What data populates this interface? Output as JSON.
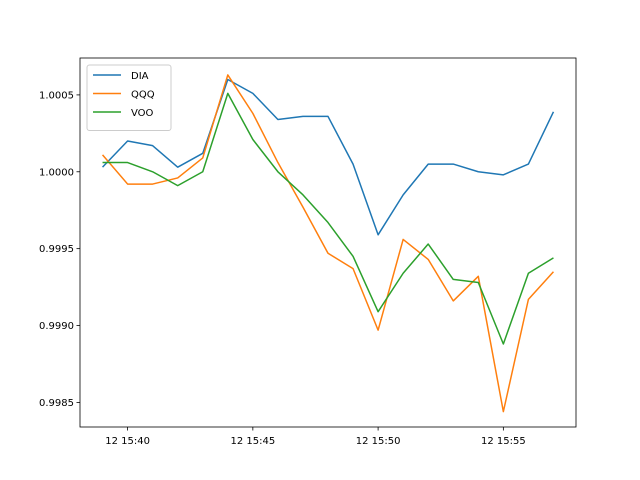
{
  "chart_data": {
    "type": "line",
    "x_unit": "time (day 12, HH:MM)",
    "x": [
      "15:39",
      "15:40",
      "15:41",
      "15:42",
      "15:43",
      "15:44",
      "15:45",
      "15:46",
      "15:47",
      "15:48",
      "15:49",
      "15:50",
      "15:51",
      "15:52",
      "15:53",
      "15:54",
      "15:55",
      "15:56",
      "15:57"
    ],
    "x_ticks": [
      "12 15:40",
      "12 15:45",
      "12 15:50",
      "12 15:55"
    ],
    "y_ticks": [
      "1.0005",
      "1.0000",
      "0.9995",
      "0.9990",
      "0.9985"
    ],
    "ylim": [
      0.99834,
      1.00074
    ],
    "grid": false,
    "legend_position": "upper-left",
    "series": [
      {
        "name": "DIA",
        "color": "#1f77b4",
        "values": [
          1.00003,
          1.0002,
          1.00017,
          1.00003,
          1.00012,
          1.0006,
          1.00051,
          1.00034,
          1.00036,
          1.00036,
          1.00005,
          0.99959,
          0.99985,
          1.00005,
          1.00005,
          1.0,
          0.99998,
          1.00005,
          1.00039
        ]
      },
      {
        "name": "QQQ",
        "color": "#ff7f0e",
        "values": [
          1.00011,
          0.99992,
          0.99992,
          0.99996,
          1.00009,
          1.00063,
          1.00038,
          1.00006,
          0.99977,
          0.99947,
          0.99937,
          0.99897,
          0.99956,
          0.99943,
          0.99916,
          0.99932,
          0.99844,
          0.99917,
          0.99935
        ]
      },
      {
        "name": "VOO",
        "color": "#2ca02c",
        "values": [
          1.00006,
          1.00006,
          1.0,
          0.99991,
          1.0,
          1.00051,
          1.00021,
          1.0,
          0.99985,
          0.99967,
          0.99945,
          0.99909,
          0.99934,
          0.99953,
          0.9993,
          0.99928,
          0.99888,
          0.99934,
          0.99944
        ]
      }
    ]
  }
}
